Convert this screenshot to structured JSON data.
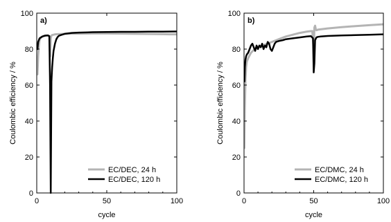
{
  "chart_data": [
    {
      "type": "line",
      "panel": "a)",
      "xlabel": "cycle",
      "ylabel": "Coulombic efficiency / %",
      "xlim": [
        0,
        100
      ],
      "ylim": [
        0,
        100
      ],
      "xticks": [
        0,
        50,
        100
      ],
      "yticks": [
        0,
        20,
        40,
        60,
        80,
        100
      ],
      "grid": false,
      "legend_position": "bottom-right",
      "series": [
        {
          "name": "EC/DEC, 24 h",
          "color": "#b4b4b4",
          "width": 3,
          "x": [
            0.5,
            1,
            1.5,
            2,
            3,
            4,
            5,
            6,
            7,
            8,
            9,
            9.5,
            10,
            10.5,
            11,
            12,
            13,
            15,
            20,
            25,
            30,
            40,
            50,
            60,
            70,
            80,
            90,
            95,
            100
          ],
          "y": [
            66,
            76,
            82,
            85,
            86.5,
            87,
            87.2,
            87.4,
            87.5,
            87.6,
            87.2,
            76,
            86,
            87.5,
            87.8,
            88,
            88.2,
            88.3,
            88.5,
            88.6,
            88.6,
            88.7,
            88.7,
            88.6,
            88.5,
            88.4,
            88.3,
            88.2,
            88.2
          ]
        },
        {
          "name": "EC/DEC, 120 h",
          "color": "#000000",
          "width": 2.5,
          "x": [
            0.5,
            1,
            2,
            3,
            4,
            5,
            6,
            7,
            8,
            9,
            9.5,
            10,
            10.5,
            11,
            11.5,
            12,
            13,
            14,
            15,
            16,
            18,
            20,
            25,
            30,
            40,
            50,
            60,
            70,
            80,
            90,
            100
          ],
          "y": [
            80,
            84,
            86,
            86.5,
            87,
            87.3,
            87.5,
            87.6,
            87.6,
            87.2,
            60,
            0,
            62,
            70,
            75,
            79,
            83,
            85.5,
            86.8,
            87.5,
            88,
            88.5,
            89,
            89.2,
            89.4,
            89.5,
            89.6,
            89.6,
            89.7,
            89.7,
            89.8
          ]
        }
      ]
    },
    {
      "type": "line",
      "panel": "b)",
      "xlabel": "cycle",
      "ylabel": "Coulombic efficiency / %",
      "xlim": [
        0,
        100
      ],
      "ylim": [
        0,
        100
      ],
      "xticks": [
        0,
        50,
        100
      ],
      "yticks": [
        0,
        20,
        40,
        60,
        80,
        100
      ],
      "grid": false,
      "legend_position": "bottom-right",
      "series": [
        {
          "name": "EC/DMC, 24 h",
          "color": "#b4b4b4",
          "width": 3,
          "x": [
            0.2,
            0.5,
            1,
            1.5,
            2,
            3,
            4,
            5,
            7,
            10,
            15,
            20,
            25,
            30,
            35,
            40,
            45,
            48,
            49,
            50,
            50.5,
            51,
            51.5,
            52,
            53,
            55,
            60,
            70,
            80,
            90,
            100
          ],
          "y": [
            25,
            45,
            62,
            70,
            73,
            75,
            76.5,
            78,
            79.5,
            81,
            82.5,
            84,
            85.5,
            87,
            88,
            89,
            89.7,
            90,
            90,
            80,
            92,
            93,
            91,
            90.5,
            90.8,
            91,
            91.5,
            92.2,
            92.8,
            93.3,
            93.8
          ]
        },
        {
          "name": "EC/DMC, 120 h",
          "color": "#000000",
          "width": 2.5,
          "x": [
            0.3,
            0.6,
            1,
            1.5,
            2,
            3,
            4,
            5,
            6,
            7,
            8,
            9,
            10,
            11,
            12,
            13,
            14,
            15,
            16,
            17,
            18,
            19,
            20,
            21,
            22,
            23,
            25,
            28,
            30,
            35,
            40,
            45,
            48,
            49.5,
            50,
            50.5,
            51,
            52,
            53,
            55,
            60,
            70,
            80,
            90,
            100
          ],
          "y": [
            62,
            70,
            74,
            76,
            77,
            78,
            80,
            82,
            83,
            81,
            79,
            82,
            80,
            82,
            81,
            83,
            80,
            82,
            81,
            84,
            83,
            80,
            79,
            81,
            83,
            84,
            84.5,
            85,
            85.5,
            86,
            86.5,
            87,
            87.2,
            86,
            67,
            72,
            85,
            86.5,
            86.8,
            87,
            87.3,
            87.6,
            87.8,
            88,
            88.2
          ]
        }
      ]
    }
  ]
}
